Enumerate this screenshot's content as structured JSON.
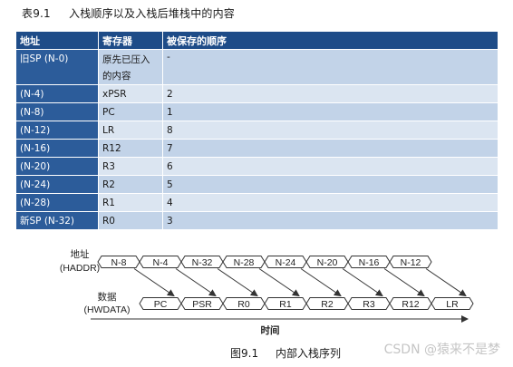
{
  "table_caption": {
    "number": "表9.1",
    "title": "入栈顺序以及入栈后堆栈中的内容"
  },
  "table": {
    "headers": [
      "地址",
      "寄存器",
      "被保存的顺序"
    ],
    "rows": [
      {
        "addr": "旧SP (N-0)",
        "reg": "原先已压入的内容",
        "order": "-"
      },
      {
        "addr": "(N-4)",
        "reg": "xPSR",
        "order": "2"
      },
      {
        "addr": "(N-8)",
        "reg": "PC",
        "order": "1"
      },
      {
        "addr": "(N-12)",
        "reg": "LR",
        "order": "8"
      },
      {
        "addr": "(N-16)",
        "reg": "R12",
        "order": "7"
      },
      {
        "addr": "(N-20)",
        "reg": "R3",
        "order": "6"
      },
      {
        "addr": "(N-24)",
        "reg": "R2",
        "order": "5"
      },
      {
        "addr": "(N-28)",
        "reg": "R1",
        "order": "4"
      },
      {
        "addr": "新SP (N-32)",
        "reg": "R0",
        "order": "3"
      }
    ]
  },
  "timing": {
    "haddr_label": [
      "地址",
      "(HADDR)"
    ],
    "hwdata_label": [
      "数据",
      "(HWDATA)"
    ],
    "haddr": [
      "N-8",
      "N-4",
      "N-32",
      "N-28",
      "N-24",
      "N-20",
      "N-16",
      "N-12"
    ],
    "hwdata": [
      "PC",
      "PSR",
      "R0",
      "R1",
      "R2",
      "R3",
      "R12",
      "LR"
    ],
    "time_label": "时间"
  },
  "figure_caption": {
    "number": "图9.1",
    "title": "内部入栈序列"
  },
  "watermark": "CSDN @猿来不是梦"
}
